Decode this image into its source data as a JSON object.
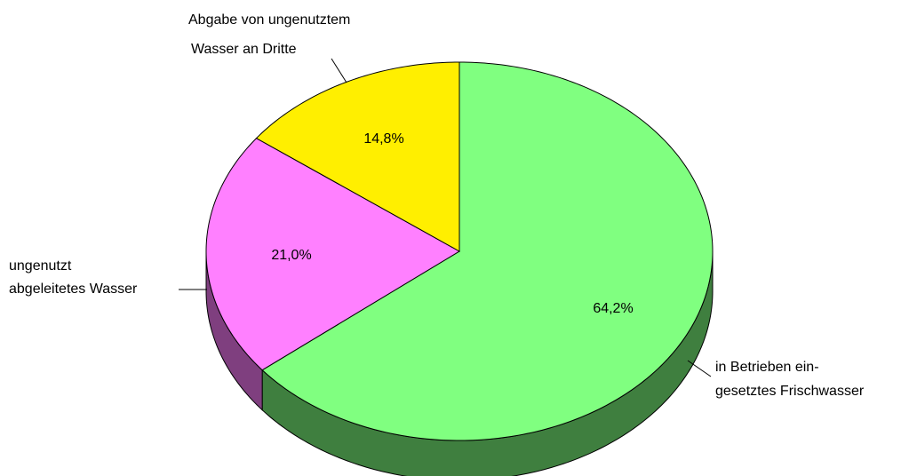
{
  "chart_data": {
    "type": "pie3d",
    "categories": [
      [
        "in Betrieben ein-",
        "gesetztes Frischwasser"
      ],
      [
        "ungenutzt",
        "abgeleitetes Wasser"
      ],
      [
        "Abgabe von ungenutztem",
        "Wasser an Dritte"
      ]
    ],
    "values": [
      64.2,
      21.0,
      14.8
    ],
    "value_labels": [
      "64,2%",
      "21,0%",
      "14,8%"
    ],
    "colors": [
      "#80ff80",
      "#ff80ff",
      "#ffef00"
    ],
    "side_colors": [
      "#3f7f3f",
      "#7f3f7f",
      "#7f7700"
    ]
  }
}
